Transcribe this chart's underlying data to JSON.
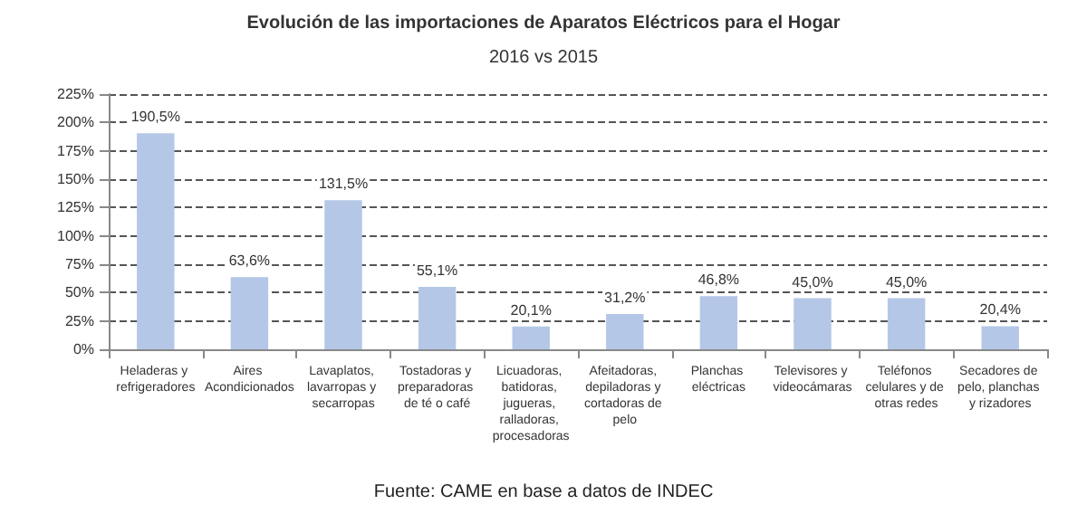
{
  "chart_data": {
    "type": "bar",
    "title": "Evolución de las importaciones de Aparatos Eléctricos para el Hogar",
    "subtitle": "2016 vs 2015",
    "categories": [
      "Heladeras y refrigeradores",
      "Aires Acondicionados",
      "Lavaplatos, lavarropas y secarropas",
      "Tostadoras y preparadoras de té o café",
      "Licuadoras, batidoras, jugueras, ralladoras, procesadoras",
      "Afeitadoras, depiladoras y cortadoras de pelo",
      "Planchas eléctricas",
      "Televisores y videocámaras",
      "Teléfonos celulares y de otras redes",
      "Secadores de pelo, planchas y rizadores"
    ],
    "values": [
      190.5,
      63.6,
      131.5,
      55.1,
      20.1,
      31.2,
      46.8,
      45.0,
      45.0,
      20.4
    ],
    "value_labels": [
      "190,5%",
      "63,6%",
      "131,5%",
      "55,1%",
      "20,1%",
      "31,2%",
      "46,8%",
      "45,0%",
      "45,0%",
      "20,4%"
    ],
    "color": "#b4c7e7",
    "ylim": [
      0,
      225
    ],
    "yticks": [
      {
        "value": 0,
        "label": "0%"
      },
      {
        "value": 25,
        "label": "25%"
      },
      {
        "value": 50,
        "label": "50%"
      },
      {
        "value": 75,
        "label": "75%"
      },
      {
        "value": 100,
        "label": "100%"
      },
      {
        "value": 125,
        "label": "125%"
      },
      {
        "value": 150,
        "label": "150%"
      },
      {
        "value": 175,
        "label": "175%"
      },
      {
        "value": 200,
        "label": "200%"
      },
      {
        "value": 225,
        "label": "225%"
      }
    ],
    "grid": "y",
    "annotations": [
      "Fuente: CAME en base a datos de INDEC"
    ]
  }
}
